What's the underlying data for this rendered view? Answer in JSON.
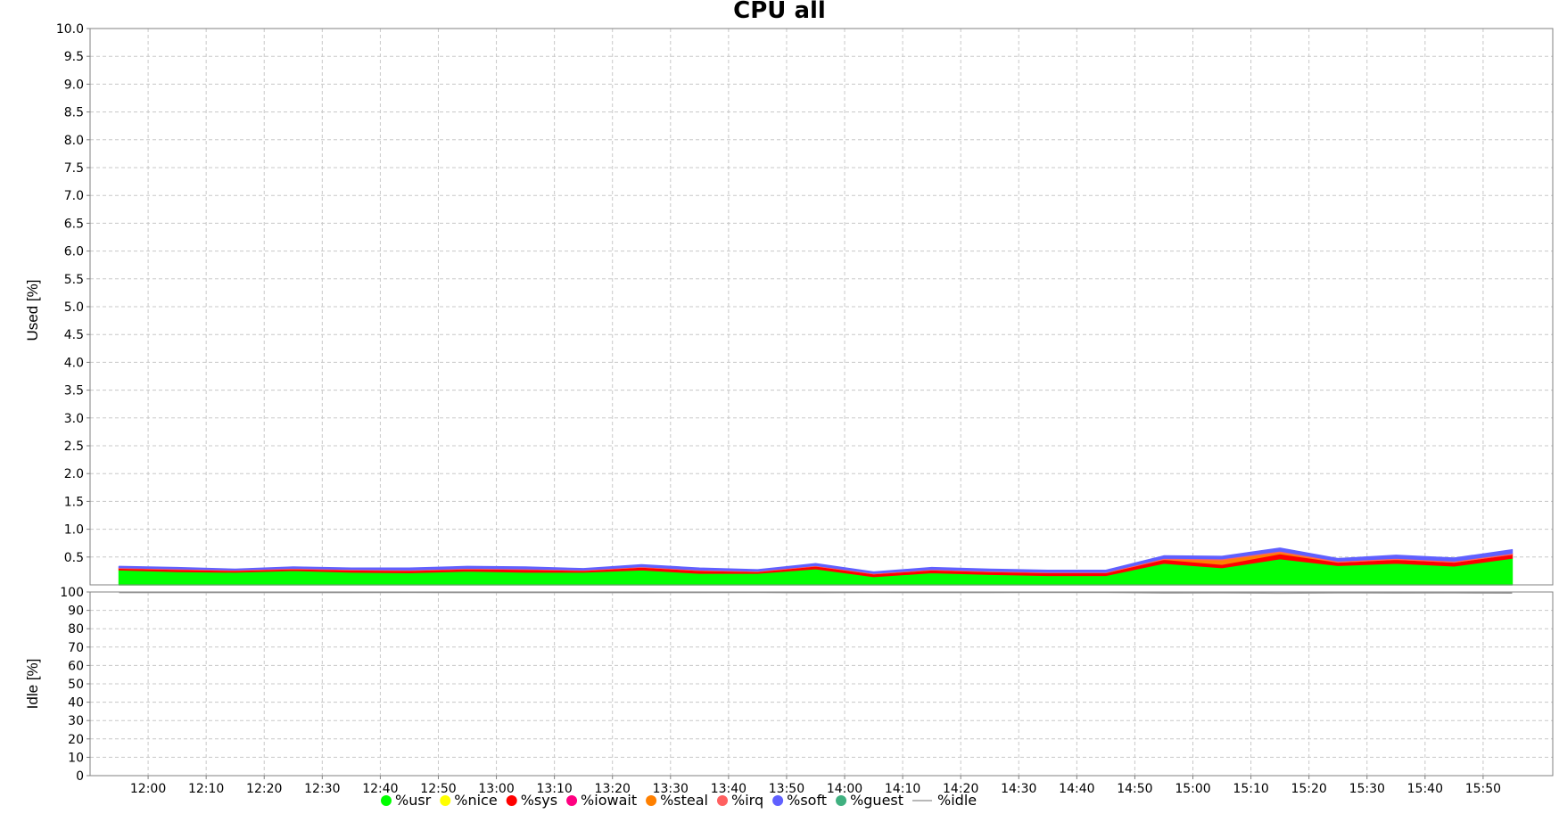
{
  "chart_data": [
    {
      "type": "area",
      "title": "CPU all",
      "ylabel": "Used [%]",
      "ylim": [
        0,
        10
      ],
      "yticks": [
        "0.5",
        "1.0",
        "1.5",
        "2.0",
        "2.5",
        "3.0",
        "3.5",
        "4.0",
        "4.5",
        "5.0",
        "5.5",
        "6.0",
        "6.5",
        "7.0",
        "7.5",
        "8.0",
        "8.5",
        "9.0",
        "9.5",
        "10.0"
      ],
      "stacked": true,
      "grid": true,
      "x": [
        "11:55",
        "12:05",
        "12:15",
        "12:25",
        "12:35",
        "12:45",
        "12:55",
        "13:05",
        "13:15",
        "13:25",
        "13:35",
        "13:45",
        "13:55",
        "14:05",
        "14:15",
        "14:25",
        "14:35",
        "14:45",
        "14:55",
        "15:05",
        "15:15",
        "15:25",
        "15:35",
        "15:45",
        "15:55"
      ],
      "series": [
        {
          "name": "%usr",
          "color": "#00ff00",
          "values": [
            0.27,
            0.24,
            0.23,
            0.26,
            0.23,
            0.22,
            0.25,
            0.23,
            0.23,
            0.27,
            0.21,
            0.21,
            0.29,
            0.15,
            0.22,
            0.19,
            0.17,
            0.17,
            0.39,
            0.31,
            0.47,
            0.35,
            0.39,
            0.34,
            0.48
          ]
        },
        {
          "name": "%nice",
          "color": "#ffff00",
          "values": [
            0,
            0,
            0,
            0,
            0,
            0,
            0,
            0,
            0,
            0,
            0,
            0,
            0,
            0,
            0,
            0,
            0,
            0,
            0,
            0,
            0,
            0,
            0,
            0,
            0
          ]
        },
        {
          "name": "%sys",
          "color": "#ff0000",
          "values": [
            0.03,
            0.04,
            0.03,
            0.03,
            0.04,
            0.04,
            0.04,
            0.05,
            0.03,
            0.05,
            0.05,
            0.03,
            0.05,
            0.05,
            0.05,
            0.05,
            0.05,
            0.05,
            0.07,
            0.06,
            0.09,
            0.06,
            0.07,
            0.07,
            0.07
          ]
        },
        {
          "name": "%iowait",
          "color": "#ff0080",
          "values": [
            0,
            0,
            0,
            0,
            0,
            0,
            0,
            0,
            0,
            0,
            0,
            0,
            0,
            0,
            0,
            0,
            0,
            0,
            0,
            0,
            0,
            0,
            0,
            0,
            0
          ]
        },
        {
          "name": "%steal",
          "color": "#ff8000",
          "values": [
            0,
            0,
            0,
            0,
            0,
            0,
            0,
            0,
            0,
            0,
            0,
            0,
            0,
            0,
            0,
            0,
            0,
            0,
            0,
            0.08,
            0.03,
            0,
            0,
            0,
            0
          ]
        },
        {
          "name": "%irq",
          "color": "#ff6060",
          "values": [
            0.01,
            0.01,
            0.01,
            0.01,
            0.01,
            0.01,
            0.01,
            0.01,
            0.01,
            0.01,
            0.01,
            0.01,
            0.01,
            0.01,
            0.01,
            0.01,
            0.01,
            0.01,
            0.02,
            0.02,
            0.02,
            0.02,
            0.02,
            0.02,
            0.02
          ]
        },
        {
          "name": "%soft",
          "color": "#6060ff",
          "values": [
            0.02,
            0.02,
            0.01,
            0.02,
            0.02,
            0.03,
            0.03,
            0.03,
            0.02,
            0.03,
            0.03,
            0.02,
            0.03,
            0.02,
            0.03,
            0.03,
            0.03,
            0.03,
            0.04,
            0.04,
            0.05,
            0.04,
            0.05,
            0.05,
            0.06
          ]
        },
        {
          "name": "%guest",
          "color": "#40b080",
          "values": [
            0,
            0,
            0,
            0,
            0,
            0,
            0,
            0,
            0,
            0,
            0,
            0,
            0,
            0,
            0,
            0,
            0,
            0,
            0,
            0,
            0,
            0,
            0,
            0,
            0
          ]
        }
      ]
    },
    {
      "type": "line",
      "ylabel": "Idle [%]",
      "ylim": [
        0,
        100
      ],
      "yticks": [
        "0",
        "10",
        "20",
        "30",
        "40",
        "50",
        "60",
        "70",
        "80",
        "90",
        "100"
      ],
      "grid": true,
      "x": [
        "11:55",
        "12:05",
        "12:15",
        "12:25",
        "12:35",
        "12:45",
        "12:55",
        "13:05",
        "13:15",
        "13:25",
        "13:35",
        "13:45",
        "13:55",
        "14:05",
        "14:15",
        "14:25",
        "14:35",
        "14:45",
        "14:55",
        "15:05",
        "15:15",
        "15:25",
        "15:35",
        "15:45",
        "15:55"
      ],
      "series": [
        {
          "name": "%idle",
          "color": "#a0a0a0",
          "values": [
            99.67,
            99.69,
            99.72,
            99.68,
            99.7,
            99.73,
            99.67,
            99.68,
            99.71,
            99.64,
            99.7,
            99.73,
            99.62,
            99.77,
            99.69,
            99.72,
            99.74,
            99.74,
            99.48,
            99.49,
            99.34,
            99.53,
            99.47,
            99.52,
            99.37
          ]
        }
      ]
    }
  ],
  "xaxis": {
    "ticks": [
      "12:00",
      "12:10",
      "12:20",
      "12:30",
      "12:40",
      "12:50",
      "13:00",
      "13:10",
      "13:20",
      "13:30",
      "13:40",
      "13:50",
      "14:00",
      "14:10",
      "14:20",
      "14:30",
      "14:40",
      "14:50",
      "15:00",
      "15:10",
      "15:20",
      "15:30",
      "15:40",
      "15:50"
    ]
  },
  "legend": {
    "placement": "bottom-center",
    "items": [
      {
        "name": "%usr",
        "color": "#00ff00",
        "marker": "dot"
      },
      {
        "name": "%nice",
        "color": "#ffff00",
        "marker": "dot"
      },
      {
        "name": "%sys",
        "color": "#ff0000",
        "marker": "dot"
      },
      {
        "name": "%iowait",
        "color": "#ff0080",
        "marker": "dot"
      },
      {
        "name": "%steal",
        "color": "#ff8000",
        "marker": "dot"
      },
      {
        "name": "%irq",
        "color": "#ff6060",
        "marker": "dot"
      },
      {
        "name": "%soft",
        "color": "#6060ff",
        "marker": "dot"
      },
      {
        "name": "%guest",
        "color": "#40b080",
        "marker": "dot"
      },
      {
        "name": "%idle",
        "color": "#a0a0a0",
        "marker": "line"
      }
    ]
  }
}
